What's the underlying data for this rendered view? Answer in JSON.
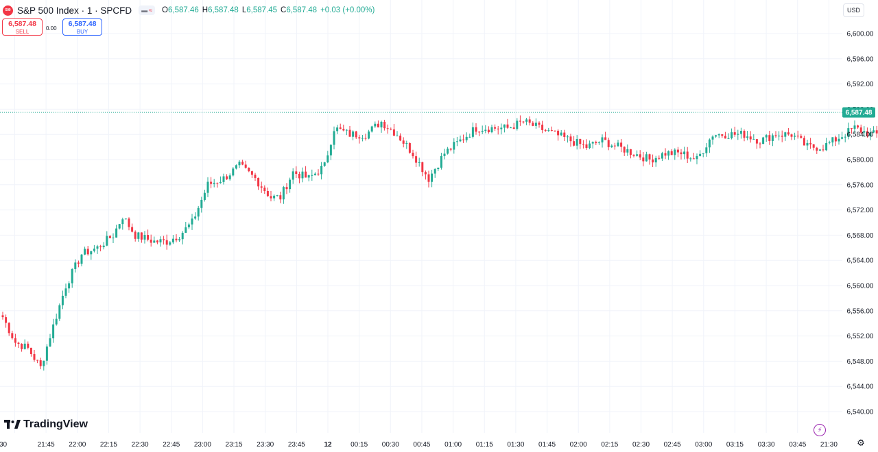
{
  "header": {
    "title": "S&P 500 Index · 1 · SPCFD",
    "symbol_logo_text": "500",
    "ohlc": [
      {
        "label": "O",
        "value": "6,587.46"
      },
      {
        "label": "H",
        "value": "6,587.48"
      },
      {
        "label": "L",
        "value": "6,587.45"
      },
      {
        "label": "C",
        "value": "6,587.48"
      },
      {
        "label": "",
        "value": "+0.03 (+0.00%)"
      }
    ]
  },
  "trade": {
    "sell_price": "6,587.48",
    "sell_label": "SELL",
    "spread": "0.00",
    "buy_price": "6,587.48",
    "buy_label": "BUY"
  },
  "currency": "USD",
  "brand": "TradingView",
  "icons": {
    "chart_toggle": "line-chart-icon",
    "compare": "waves-icon",
    "bolt": "lightning-icon",
    "settings": "gear-icon"
  },
  "colors": {
    "up": "#22ab94",
    "down": "#f23645",
    "grid": "#f0f3fa",
    "text": "#131722",
    "accent_blue": "#2962ff"
  },
  "chart_data": {
    "type": "candlestick",
    "interval": "1",
    "last_price": 6587.48,
    "last_price_label": "6,587.48",
    "y_axis": {
      "range": [
        6538,
        6605
      ],
      "ticks": [
        6540,
        6544,
        6548,
        6552,
        6556,
        6560,
        6564,
        6568,
        6572,
        6576,
        6580,
        6584,
        6588,
        6592,
        6596,
        6600
      ],
      "tick_labels": [
        "6,540.00",
        "6,544.00",
        "6,548.00",
        "6,552.00",
        "6,556.00",
        "6,560.00",
        "6,564.00",
        "6,568.00",
        "6,572.00",
        "6,576.00",
        "6,580.00",
        "6,584.00",
        "6,588.00",
        "6,592.00",
        "6,596.00",
        "6,600.00"
      ]
    },
    "x_axis": {
      "labels": [
        "30",
        "21:45",
        "22:00",
        "22:15",
        "22:30",
        "22:45",
        "23:00",
        "23:15",
        "23:30",
        "23:45",
        "12",
        "00:15",
        "00:30",
        "00:45",
        "01:00",
        "01:15",
        "01:30",
        "01:45",
        "02:00",
        "02:15",
        "02:30",
        "02:45",
        "03:00",
        "03:15",
        "03:30",
        "03:45",
        "21:30"
      ],
      "start_time": "21:30",
      "last_bar_time": "03:58",
      "bar_minutes": 1
    },
    "close_anchors": [
      {
        "time": "21:30",
        "close": 6555
      },
      {
        "time": "21:34",
        "close": 6551
      },
      {
        "time": "21:38",
        "close": 6550
      },
      {
        "time": "21:42",
        "close": 6547
      },
      {
        "time": "21:45",
        "close": 6552
      },
      {
        "time": "21:50",
        "close": 6560
      },
      {
        "time": "21:55",
        "close": 6565
      },
      {
        "time": "22:00",
        "close": 6566
      },
      {
        "time": "22:05",
        "close": 6568
      },
      {
        "time": "22:08",
        "close": 6571
      },
      {
        "time": "22:12",
        "close": 6568
      },
      {
        "time": "22:18",
        "close": 6567
      },
      {
        "time": "22:22",
        "close": 6567
      },
      {
        "time": "22:26",
        "close": 6568
      },
      {
        "time": "22:30",
        "close": 6570
      },
      {
        "time": "22:35",
        "close": 6576
      },
      {
        "time": "22:40",
        "close": 6577
      },
      {
        "time": "22:45",
        "close": 6579
      },
      {
        "time": "22:50",
        "close": 6577
      },
      {
        "time": "22:55",
        "close": 6574
      },
      {
        "time": "22:58",
        "close": 6574
      },
      {
        "time": "23:02",
        "close": 6578
      },
      {
        "time": "23:07",
        "close": 6577
      },
      {
        "time": "23:12",
        "close": 6579
      },
      {
        "time": "23:15",
        "close": 6585
      },
      {
        "time": "23:20",
        "close": 6584
      },
      {
        "time": "23:25",
        "close": 6584
      },
      {
        "time": "23:30",
        "close": 6586
      },
      {
        "time": "23:35",
        "close": 6584
      },
      {
        "time": "23:40",
        "close": 6581
      },
      {
        "time": "23:45",
        "close": 6577
      },
      {
        "time": "23:50",
        "close": 6581
      },
      {
        "time": "23:55",
        "close": 6583
      },
      {
        "time": "00:00",
        "close": 6585
      },
      {
        "time": "00:05",
        "close": 6585
      },
      {
        "time": "00:10",
        "close": 6585
      },
      {
        "time": "00:15",
        "close": 6586
      },
      {
        "time": "00:20",
        "close": 6585
      },
      {
        "time": "00:25",
        "close": 6584
      },
      {
        "time": "00:30",
        "close": 6583
      },
      {
        "time": "00:35",
        "close": 6582
      },
      {
        "time": "00:40",
        "close": 6583
      },
      {
        "time": "00:45",
        "close": 6582
      },
      {
        "time": "00:50",
        "close": 6581
      },
      {
        "time": "00:55",
        "close": 6580
      },
      {
        "time": "01:00",
        "close": 6581
      },
      {
        "time": "01:05",
        "close": 6581
      },
      {
        "time": "01:10",
        "close": 6580
      },
      {
        "time": "01:15",
        "close": 6584
      },
      {
        "time": "01:20",
        "close": 6584
      },
      {
        "time": "01:25",
        "close": 6584
      },
      {
        "time": "01:30",
        "close": 6583
      },
      {
        "time": "01:35",
        "close": 6584
      },
      {
        "time": "01:40",
        "close": 6584
      },
      {
        "time": "01:45",
        "close": 6582
      },
      {
        "time": "01:50",
        "close": 6582
      },
      {
        "time": "02:00",
        "close": 6585
      },
      {
        "time": "02:05",
        "close": 6584
      },
      {
        "time": "02:10",
        "close": 6584
      },
      {
        "time": "02:15",
        "close": 6585
      },
      {
        "time": "02:20",
        "close": 6583
      },
      {
        "time": "02:25",
        "close": 6582
      },
      {
        "time": "02:30",
        "close": 6583
      },
      {
        "time": "02:35",
        "close": 6582
      },
      {
        "time": "02:40",
        "close": 6584
      },
      {
        "time": "02:45",
        "close": 6585
      },
      {
        "time": "02:50",
        "close": 6586
      },
      {
        "time": "02:55",
        "close": 6585
      },
      {
        "time": "03:00",
        "close": 6585
      },
      {
        "time": "03:05",
        "close": 6586
      },
      {
        "time": "03:10",
        "close": 6586
      },
      {
        "time": "03:15",
        "close": 6587
      },
      {
        "time": "03:20",
        "close": 6587
      },
      {
        "time": "03:25",
        "close": 6588
      },
      {
        "time": "03:30",
        "close": 6590
      },
      {
        "time": "03:35",
        "close": 6591
      },
      {
        "time": "03:40",
        "close": 6589
      },
      {
        "time": "03:45",
        "close": 6590
      },
      {
        "time": "03:48",
        "close": 6592
      },
      {
        "time": "03:52",
        "close": 6590
      },
      {
        "time": "03:55",
        "close": 6591
      },
      {
        "time": "03:57",
        "close": 6586
      },
      {
        "time": "03:58",
        "close": 6587.48
      }
    ]
  }
}
